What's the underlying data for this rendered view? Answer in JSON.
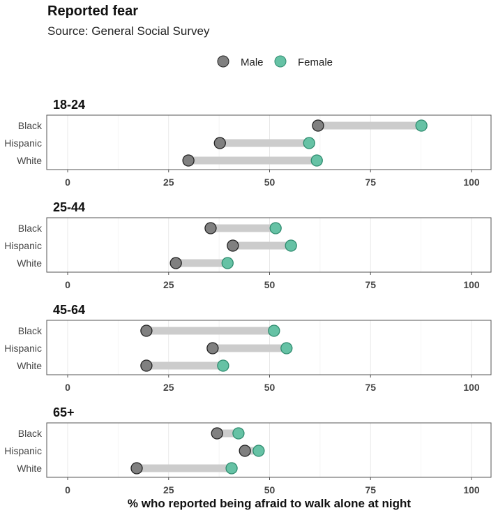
{
  "chart_data": {
    "type": "dumbbell",
    "title": "Reported fear",
    "subtitle": "Source: General Social Survey",
    "xlabel": "% who reported being afraid to walk alone at night",
    "xlim": [
      0,
      100
    ],
    "xticks": [
      "0",
      "25",
      "50",
      "75",
      "100"
    ],
    "xtick_values": [
      0,
      25,
      50,
      75,
      100
    ],
    "grid": true,
    "legend_position": "top",
    "series": [
      {
        "name": "Male",
        "color": "#808080"
      },
      {
        "name": "Female",
        "color": "#66c2a5"
      }
    ],
    "segment_color": "#cccccc",
    "categories": [
      "Black",
      "Hispanic",
      "White"
    ],
    "panels": [
      {
        "title": "18-24",
        "male": [
          62,
          37.7,
          29.9
        ],
        "female": [
          87.6,
          59.8,
          61.7
        ]
      },
      {
        "title": "25-44",
        "male": [
          35.4,
          40.9,
          26.8
        ],
        "female": [
          51.5,
          55.3,
          39.6
        ]
      },
      {
        "title": "45-64",
        "male": [
          19.5,
          35.9,
          19.5
        ],
        "female": [
          51.1,
          54.2,
          38.5
        ]
      },
      {
        "title": "65+",
        "male": [
          37,
          43.9,
          17.1
        ],
        "female": [
          42.3,
          47.3,
          40.6
        ]
      }
    ]
  }
}
